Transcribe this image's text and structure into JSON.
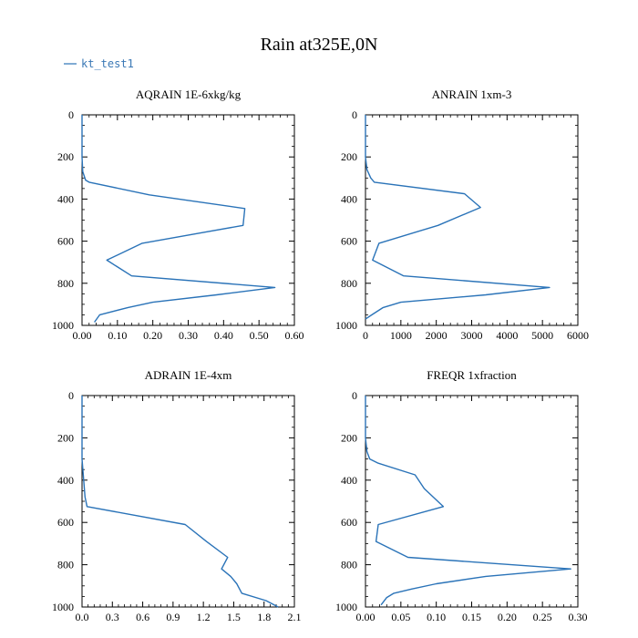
{
  "figure_title": "Rain at325E,0N",
  "legend": {
    "label": "kt_test1",
    "color": "#2a73b8"
  },
  "chart_data": [
    {
      "type": "line",
      "title": "AQRAIN  1E-6xkg/kg",
      "xlim": [
        0,
        0.6
      ],
      "ylim": [
        1000,
        0
      ],
      "xticks": [
        0,
        0.1,
        0.2,
        0.3,
        0.4,
        0.5,
        0.6
      ],
      "xtick_labels": [
        "0.00",
        "0.10",
        "0.20",
        "0.30",
        "0.40",
        "0.50",
        "0.60"
      ],
      "yticks": [
        0,
        200,
        400,
        600,
        800,
        1000
      ],
      "ytick_labels": [
        "0",
        "200",
        "400",
        "600",
        "800",
        "1000"
      ],
      "series": [
        {
          "name": "kt_test1",
          "x": [
            0,
            0,
            0,
            0.002,
            0.01,
            0.02,
            0.19,
            0.46,
            0.455,
            0.17,
            0.07,
            0.14,
            0.545,
            0.38,
            0.2,
            0.13,
            0.05,
            0.035
          ],
          "y": [
            0,
            100,
            200,
            270,
            310,
            320,
            380,
            445,
            525,
            610,
            690,
            765,
            820,
            855,
            890,
            915,
            950,
            985
          ]
        }
      ]
    },
    {
      "type": "line",
      "title": "ANRAIN  1xm-3",
      "xlim": [
        0,
        6000
      ],
      "ylim": [
        1000,
        0
      ],
      "xticks": [
        0,
        1000,
        2000,
        3000,
        4000,
        5000,
        6000
      ],
      "xtick_labels": [
        "0",
        "1000",
        "2000",
        "3000",
        "4000",
        "5000",
        "6000"
      ],
      "yticks": [
        0,
        200,
        400,
        600,
        800,
        1000
      ],
      "ytick_labels": [
        "0",
        "200",
        "400",
        "600",
        "800",
        "1000"
      ],
      "series": [
        {
          "name": "kt_test1",
          "x": [
            0,
            0,
            0,
            40,
            150,
            250,
            2800,
            3250,
            2050,
            380,
            200,
            1080,
            5200,
            3400,
            1000,
            500,
            180,
            0
          ],
          "y": [
            0,
            100,
            200,
            260,
            300,
            320,
            375,
            440,
            525,
            610,
            690,
            765,
            820,
            855,
            890,
            915,
            950,
            970
          ]
        }
      ]
    },
    {
      "type": "line",
      "title": "ADRAIN  1E-4xm",
      "xlim": [
        0,
        2.1
      ],
      "ylim": [
        1000,
        0
      ],
      "xticks": [
        0,
        0.3,
        0.6,
        0.9,
        1.2,
        1.5,
        1.8,
        2.1
      ],
      "xtick_labels": [
        "0.0",
        "0.3",
        "0.6",
        "0.9",
        "1.2",
        "1.5",
        "1.8",
        "2.1"
      ],
      "yticks": [
        0,
        200,
        400,
        600,
        800,
        1000
      ],
      "ytick_labels": [
        "0",
        "200",
        "400",
        "600",
        "800",
        "1000"
      ],
      "series": [
        {
          "name": "kt_test1",
          "x": [
            0,
            0,
            0,
            0.01,
            0.02,
            0.03,
            0.05,
            1.02,
            1.23,
            1.44,
            1.38,
            1.47,
            1.53,
            1.58,
            1.82,
            1.94
          ],
          "y": [
            0,
            200,
            300,
            360,
            420,
            480,
            525,
            610,
            690,
            765,
            820,
            855,
            890,
            935,
            970,
            1000
          ]
        }
      ]
    },
    {
      "type": "line",
      "title": "FREQR  1xfraction",
      "xlim": [
        0,
        0.3
      ],
      "ylim": [
        1000,
        0
      ],
      "xticks": [
        0,
        0.05,
        0.1,
        0.15,
        0.2,
        0.25,
        0.3
      ],
      "xtick_labels": [
        "0.00",
        "0.05",
        "0.10",
        "0.15",
        "0.20",
        "0.25",
        "0.30"
      ],
      "yticks": [
        0,
        200,
        400,
        600,
        800,
        1000
      ],
      "ytick_labels": [
        "0",
        "200",
        "400",
        "600",
        "800",
        "1000"
      ],
      "series": [
        {
          "name": "kt_test1",
          "x": [
            0,
            0,
            0,
            0.002,
            0.006,
            0.018,
            0.07,
            0.083,
            0.11,
            0.018,
            0.015,
            0.06,
            0.29,
            0.17,
            0.1,
            0.065,
            0.04,
            0.03,
            0.022
          ],
          "y": [
            0,
            100,
            200,
            265,
            300,
            320,
            375,
            440,
            525,
            610,
            690,
            765,
            820,
            855,
            890,
            915,
            935,
            955,
            990
          ]
        }
      ]
    }
  ]
}
